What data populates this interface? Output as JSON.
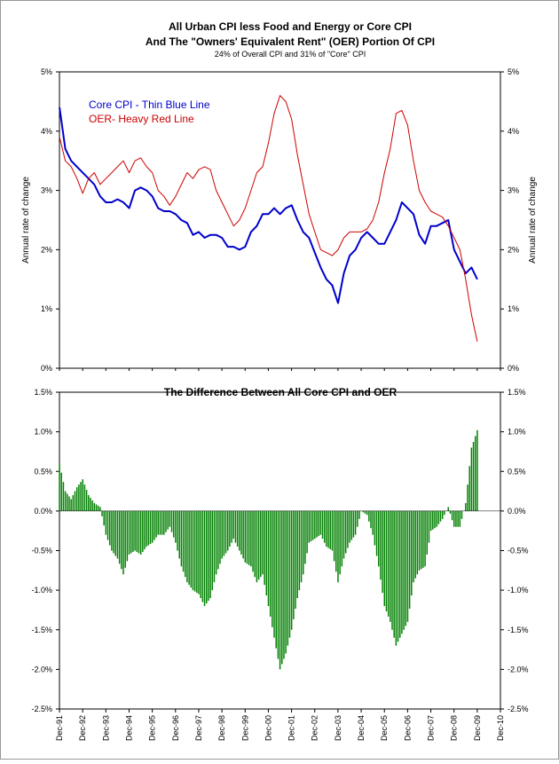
{
  "chart_data": [
    {
      "type": "line",
      "title": "All Urban CPI less Food and Energy or Core CPI",
      "title_line2": "And The \"Owners' Equivalent Rent\" (OER) Portion Of CPI",
      "subtitle": "24% of Overall CPI and 31% of \"Core\" CPI",
      "ylabel_left": "Annual rate of change",
      "ylabel_right": "Annual rate of change",
      "ylim": [
        0,
        5
      ],
      "y_ticks": [
        0,
        1,
        2,
        3,
        4,
        5
      ],
      "y_tick_labels": [
        "0%",
        "1%",
        "2%",
        "3%",
        "4%",
        "5%"
      ],
      "x_range": [
        1991.917,
        2010.917
      ],
      "grid": false,
      "legend": "top-left",
      "series": [
        {
          "name": "Core CPI - Thin Blue Line",
          "color": "#0000CC",
          "points": [
            [
              1991.92,
              4.4
            ],
            [
              1992.17,
              3.7
            ],
            [
              1992.42,
              3.5
            ],
            [
              1992.67,
              3.4
            ],
            [
              1992.92,
              3.3
            ],
            [
              1993.17,
              3.2
            ],
            [
              1993.42,
              3.1
            ],
            [
              1993.67,
              2.9
            ],
            [
              1993.92,
              2.8
            ],
            [
              1994.17,
              2.8
            ],
            [
              1994.42,
              2.85
            ],
            [
              1994.67,
              2.8
            ],
            [
              1994.92,
              2.7
            ],
            [
              1995.17,
              3.0
            ],
            [
              1995.42,
              3.05
            ],
            [
              1995.67,
              3.0
            ],
            [
              1995.92,
              2.9
            ],
            [
              1996.17,
              2.7
            ],
            [
              1996.42,
              2.65
            ],
            [
              1996.67,
              2.65
            ],
            [
              1996.92,
              2.6
            ],
            [
              1997.17,
              2.5
            ],
            [
              1997.42,
              2.45
            ],
            [
              1997.67,
              2.25
            ],
            [
              1997.92,
              2.3
            ],
            [
              1998.17,
              2.2
            ],
            [
              1998.42,
              2.25
            ],
            [
              1998.67,
              2.25
            ],
            [
              1998.92,
              2.2
            ],
            [
              1999.17,
              2.05
            ],
            [
              1999.42,
              2.05
            ],
            [
              1999.67,
              2.0
            ],
            [
              1999.92,
              2.05
            ],
            [
              2000.17,
              2.3
            ],
            [
              2000.42,
              2.4
            ],
            [
              2000.67,
              2.6
            ],
            [
              2000.92,
              2.6
            ],
            [
              2001.17,
              2.7
            ],
            [
              2001.42,
              2.6
            ],
            [
              2001.67,
              2.7
            ],
            [
              2001.92,
              2.75
            ],
            [
              2002.17,
              2.5
            ],
            [
              2002.42,
              2.3
            ],
            [
              2002.67,
              2.2
            ],
            [
              2002.92,
              1.95
            ],
            [
              2003.17,
              1.7
            ],
            [
              2003.42,
              1.5
            ],
            [
              2003.67,
              1.4
            ],
            [
              2003.92,
              1.1
            ],
            [
              2004.17,
              1.6
            ],
            [
              2004.42,
              1.9
            ],
            [
              2004.67,
              2.0
            ],
            [
              2004.92,
              2.2
            ],
            [
              2005.17,
              2.3
            ],
            [
              2005.42,
              2.2
            ],
            [
              2005.67,
              2.1
            ],
            [
              2005.92,
              2.1
            ],
            [
              2006.17,
              2.3
            ],
            [
              2006.42,
              2.5
            ],
            [
              2006.67,
              2.8
            ],
            [
              2006.92,
              2.7
            ],
            [
              2007.17,
              2.6
            ],
            [
              2007.42,
              2.25
            ],
            [
              2007.67,
              2.1
            ],
            [
              2007.92,
              2.4
            ],
            [
              2008.17,
              2.4
            ],
            [
              2008.42,
              2.45
            ],
            [
              2008.67,
              2.5
            ],
            [
              2008.92,
              2.0
            ],
            [
              2009.17,
              1.8
            ],
            [
              2009.42,
              1.6
            ],
            [
              2009.67,
              1.7
            ],
            [
              2009.92,
              1.5
            ]
          ]
        },
        {
          "name": "OER- Heavy Red Line",
          "color": "#CC0000",
          "points": [
            [
              1991.92,
              3.9
            ],
            [
              1992.17,
              3.5
            ],
            [
              1992.42,
              3.4
            ],
            [
              1992.67,
              3.2
            ],
            [
              1992.92,
              2.95
            ],
            [
              1993.17,
              3.2
            ],
            [
              1993.42,
              3.3
            ],
            [
              1993.67,
              3.1
            ],
            [
              1993.92,
              3.2
            ],
            [
              1994.17,
              3.3
            ],
            [
              1994.42,
              3.4
            ],
            [
              1994.67,
              3.5
            ],
            [
              1994.92,
              3.3
            ],
            [
              1995.17,
              3.5
            ],
            [
              1995.42,
              3.55
            ],
            [
              1995.67,
              3.4
            ],
            [
              1995.92,
              3.3
            ],
            [
              1996.17,
              3.0
            ],
            [
              1996.42,
              2.9
            ],
            [
              1996.67,
              2.75
            ],
            [
              1996.92,
              2.9
            ],
            [
              1997.17,
              3.1
            ],
            [
              1997.42,
              3.3
            ],
            [
              1997.67,
              3.2
            ],
            [
              1997.92,
              3.35
            ],
            [
              1998.17,
              3.4
            ],
            [
              1998.42,
              3.35
            ],
            [
              1998.67,
              3.0
            ],
            [
              1998.92,
              2.8
            ],
            [
              1999.17,
              2.6
            ],
            [
              1999.42,
              2.4
            ],
            [
              1999.67,
              2.5
            ],
            [
              1999.92,
              2.7
            ],
            [
              2000.17,
              3.0
            ],
            [
              2000.42,
              3.3
            ],
            [
              2000.67,
              3.4
            ],
            [
              2000.92,
              3.8
            ],
            [
              2001.17,
              4.3
            ],
            [
              2001.42,
              4.6
            ],
            [
              2001.67,
              4.5
            ],
            [
              2001.92,
              4.2
            ],
            [
              2002.17,
              3.6
            ],
            [
              2002.42,
              3.1
            ],
            [
              2002.67,
              2.6
            ],
            [
              2002.92,
              2.3
            ],
            [
              2003.17,
              2.0
            ],
            [
              2003.42,
              1.95
            ],
            [
              2003.67,
              1.9
            ],
            [
              2003.92,
              2.0
            ],
            [
              2004.17,
              2.2
            ],
            [
              2004.42,
              2.3
            ],
            [
              2004.67,
              2.3
            ],
            [
              2004.92,
              2.3
            ],
            [
              2005.17,
              2.35
            ],
            [
              2005.42,
              2.5
            ],
            [
              2005.67,
              2.8
            ],
            [
              2005.92,
              3.3
            ],
            [
              2006.17,
              3.7
            ],
            [
              2006.42,
              4.3
            ],
            [
              2006.67,
              4.35
            ],
            [
              2006.92,
              4.1
            ],
            [
              2007.17,
              3.5
            ],
            [
              2007.42,
              3.0
            ],
            [
              2007.67,
              2.8
            ],
            [
              2007.92,
              2.65
            ],
            [
              2008.17,
              2.6
            ],
            [
              2008.42,
              2.55
            ],
            [
              2008.67,
              2.4
            ],
            [
              2008.92,
              2.2
            ],
            [
              2009.17,
              2.0
            ],
            [
              2009.42,
              1.5
            ],
            [
              2009.67,
              0.9
            ],
            [
              2009.92,
              0.45
            ]
          ]
        }
      ]
    },
    {
      "type": "bar",
      "title": "The Difference Between All Core CPI and OER",
      "ylim": [
        -2.5,
        1.5
      ],
      "y_ticks": [
        -2.5,
        -2.0,
        -1.5,
        -1.0,
        -0.5,
        0.0,
        0.5,
        1.0,
        1.5
      ],
      "y_tick_labels": [
        "-2.5%",
        "-2.0%",
        "-1.5%",
        "-1.0%",
        "-0.5%",
        "0.0%",
        "0.5%",
        "1.0%",
        "1.5%"
      ],
      "x_range": [
        1991.917,
        2010.917
      ],
      "x_tick_labels": [
        "Dec-91",
        "Dec-92",
        "Dec-93",
        "Dec-94",
        "Dec-95",
        "Dec-96",
        "Dec-97",
        "Dec-98",
        "Dec-99",
        "Dec-00",
        "Dec-01",
        "Dec-02",
        "Dec-03",
        "Dec-04",
        "Dec-05",
        "Dec-06",
        "Dec-07",
        "Dec-08",
        "Dec-09",
        "Dec-10"
      ],
      "bar_color": "#008000",
      "grid": false,
      "points": [
        [
          1991.92,
          0.6
        ],
        [
          1992.17,
          0.25
        ],
        [
          1992.42,
          0.15
        ],
        [
          1992.67,
          0.3
        ],
        [
          1992.92,
          0.4
        ],
        [
          1993.17,
          0.2
        ],
        [
          1993.42,
          0.1
        ],
        [
          1993.67,
          0.05
        ],
        [
          1993.92,
          -0.3
        ],
        [
          1994.17,
          -0.5
        ],
        [
          1994.42,
          -0.6
        ],
        [
          1994.67,
          -0.8
        ],
        [
          1994.92,
          -0.55
        ],
        [
          1995.17,
          -0.5
        ],
        [
          1995.42,
          -0.55
        ],
        [
          1995.67,
          -0.45
        ],
        [
          1995.92,
          -0.4
        ],
        [
          1996.17,
          -0.3
        ],
        [
          1996.42,
          -0.3
        ],
        [
          1996.67,
          -0.2
        ],
        [
          1996.92,
          -0.4
        ],
        [
          1997.17,
          -0.7
        ],
        [
          1997.42,
          -0.9
        ],
        [
          1997.67,
          -1.0
        ],
        [
          1997.92,
          -1.05
        ],
        [
          1998.17,
          -1.2
        ],
        [
          1998.42,
          -1.1
        ],
        [
          1998.67,
          -0.8
        ],
        [
          1998.92,
          -0.6
        ],
        [
          1999.17,
          -0.5
        ],
        [
          1999.42,
          -0.35
        ],
        [
          1999.67,
          -0.5
        ],
        [
          1999.92,
          -0.65
        ],
        [
          2000.17,
          -0.7
        ],
        [
          2000.42,
          -0.9
        ],
        [
          2000.67,
          -0.8
        ],
        [
          2000.92,
          -1.2
        ],
        [
          2001.17,
          -1.6
        ],
        [
          2001.42,
          -2.0
        ],
        [
          2001.67,
          -1.8
        ],
        [
          2001.92,
          -1.5
        ],
        [
          2002.17,
          -1.1
        ],
        [
          2002.42,
          -0.8
        ],
        [
          2002.67,
          -0.4
        ],
        [
          2002.92,
          -0.35
        ],
        [
          2003.17,
          -0.3
        ],
        [
          2003.42,
          -0.45
        ],
        [
          2003.67,
          -0.5
        ],
        [
          2003.92,
          -0.9
        ],
        [
          2004.17,
          -0.6
        ],
        [
          2004.42,
          -0.4
        ],
        [
          2004.67,
          -0.3
        ],
        [
          2004.92,
          0.0
        ],
        [
          2005.17,
          -0.05
        ],
        [
          2005.42,
          -0.3
        ],
        [
          2005.67,
          -0.7
        ],
        [
          2005.92,
          -1.2
        ],
        [
          2006.17,
          -1.4
        ],
        [
          2006.42,
          -1.7
        ],
        [
          2006.67,
          -1.55
        ],
        [
          2006.92,
          -1.4
        ],
        [
          2007.17,
          -0.9
        ],
        [
          2007.42,
          -0.75
        ],
        [
          2007.67,
          -0.7
        ],
        [
          2007.92,
          -0.25
        ],
        [
          2008.17,
          -0.2
        ],
        [
          2008.42,
          -0.1
        ],
        [
          2008.67,
          0.05
        ],
        [
          2008.92,
          -0.2
        ],
        [
          2009.17,
          -0.2
        ],
        [
          2009.42,
          0.1
        ],
        [
          2009.67,
          0.8
        ],
        [
          2009.92,
          1.02
        ]
      ]
    }
  ]
}
